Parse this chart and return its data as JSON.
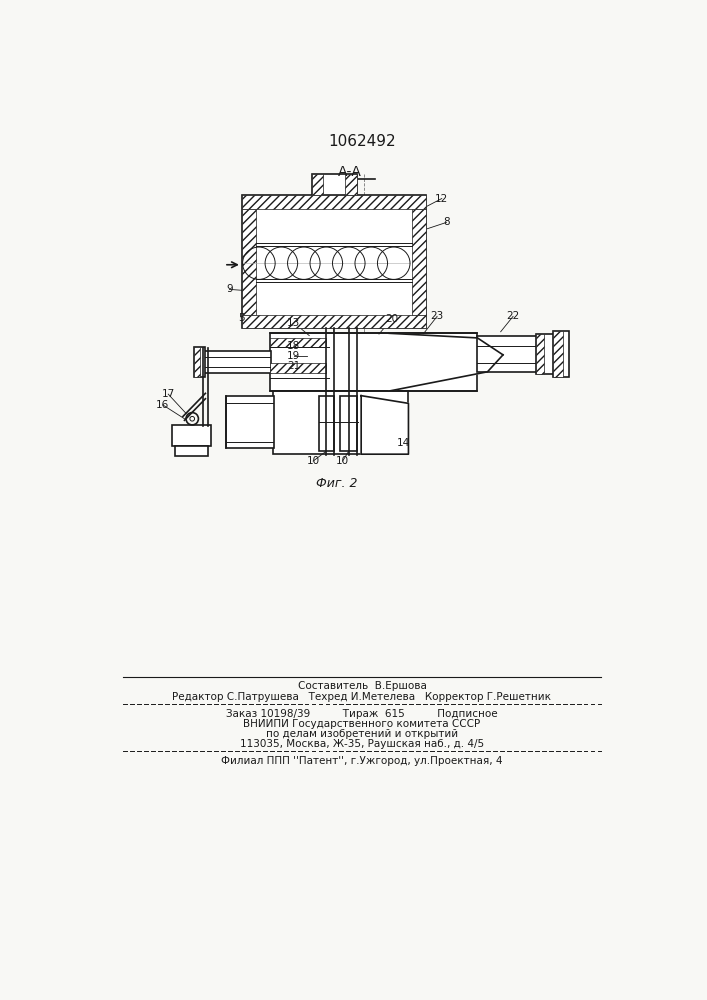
{
  "patent_number": "1062492",
  "section_label": "А-А",
  "fig_label": "Фиг. 2",
  "footer_line1": "Составитель  В.Ершова",
  "footer_line2": "Редактор С.Патрушева   Техред И.Метелева   Корректор Г.Решетник",
  "footer_line3": "Заказ 10198/39          Тираж  615          Подписное",
  "footer_line4": "ВНИИПИ Государственного комитета СССР",
  "footer_line5": "по делам изобретений и открытий",
  "footer_line6": "113035, Москва, Ж-35, Раушская наб., д. 4/5",
  "footer_line7": "Филиал ППП ''Патент'', г.Ужгород, ул.Проектная, 4",
  "bg_color": "#f8f8f5",
  "line_color": "#1a1a1a"
}
